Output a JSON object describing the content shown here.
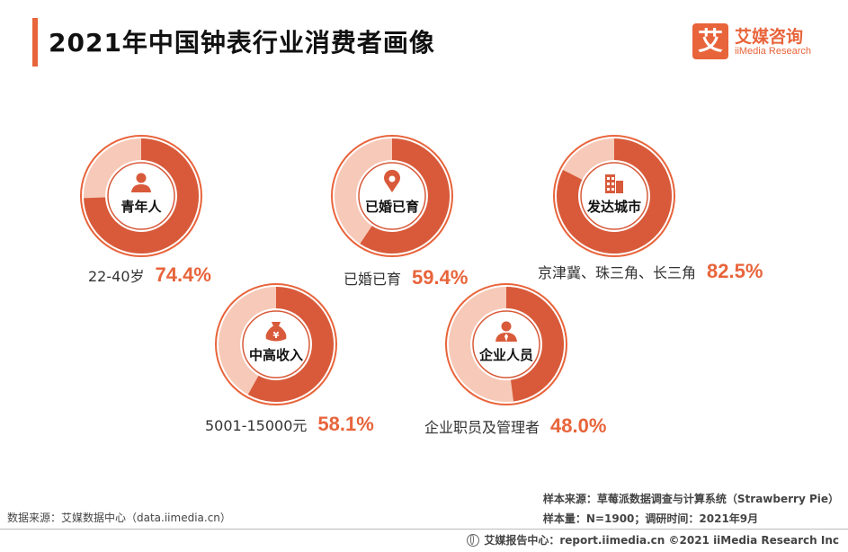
{
  "header": {
    "title": "2021年中国钟表行业消费者画像"
  },
  "logo": {
    "mark": "艾",
    "name_cn": "艾媒咨询",
    "name_en": "iiMedia Research"
  },
  "chart_data": {
    "type": "donut",
    "title": "2021年中国钟表行业消费者画像",
    "items": [
      {
        "label": "青年人",
        "caption": "22-40岁",
        "value": 74.4,
        "value_label": "74.4%",
        "icon": "person-icon"
      },
      {
        "label": "已婚已育",
        "caption": "已婚已育",
        "value": 59.4,
        "value_label": "59.4%",
        "icon": "location-pin-icon"
      },
      {
        "label": "发达城市",
        "caption": "京津冀、珠三角、长三角",
        "value": 82.5,
        "value_label": "82.5%",
        "icon": "buildings-icon"
      },
      {
        "label": "中高收入",
        "caption": "5001-15000元",
        "value": 58.1,
        "value_label": "58.1%",
        "icon": "money-bag-icon"
      },
      {
        "label": "企业人员",
        "caption": "企业职员及管理者",
        "value": 48.0,
        "value_label": "48.0%",
        "icon": "businessman-icon"
      }
    ],
    "colors": {
      "fill": "#d85a3a",
      "track": "#f7c9b8",
      "outline": "#e8643b"
    }
  },
  "source": {
    "data_source": "数据来源：艾媒数据中心（data.iimedia.cn）",
    "sample_source": "样本来源：草莓派数据调查与计算系统（Strawberry Pie）",
    "sample_info": "样本量：N=1900；调研时间：2021年9月"
  },
  "footer": {
    "text": "艾媒报告中心：report.iimedia.cn   ©2021  iiMedia Research  Inc"
  }
}
